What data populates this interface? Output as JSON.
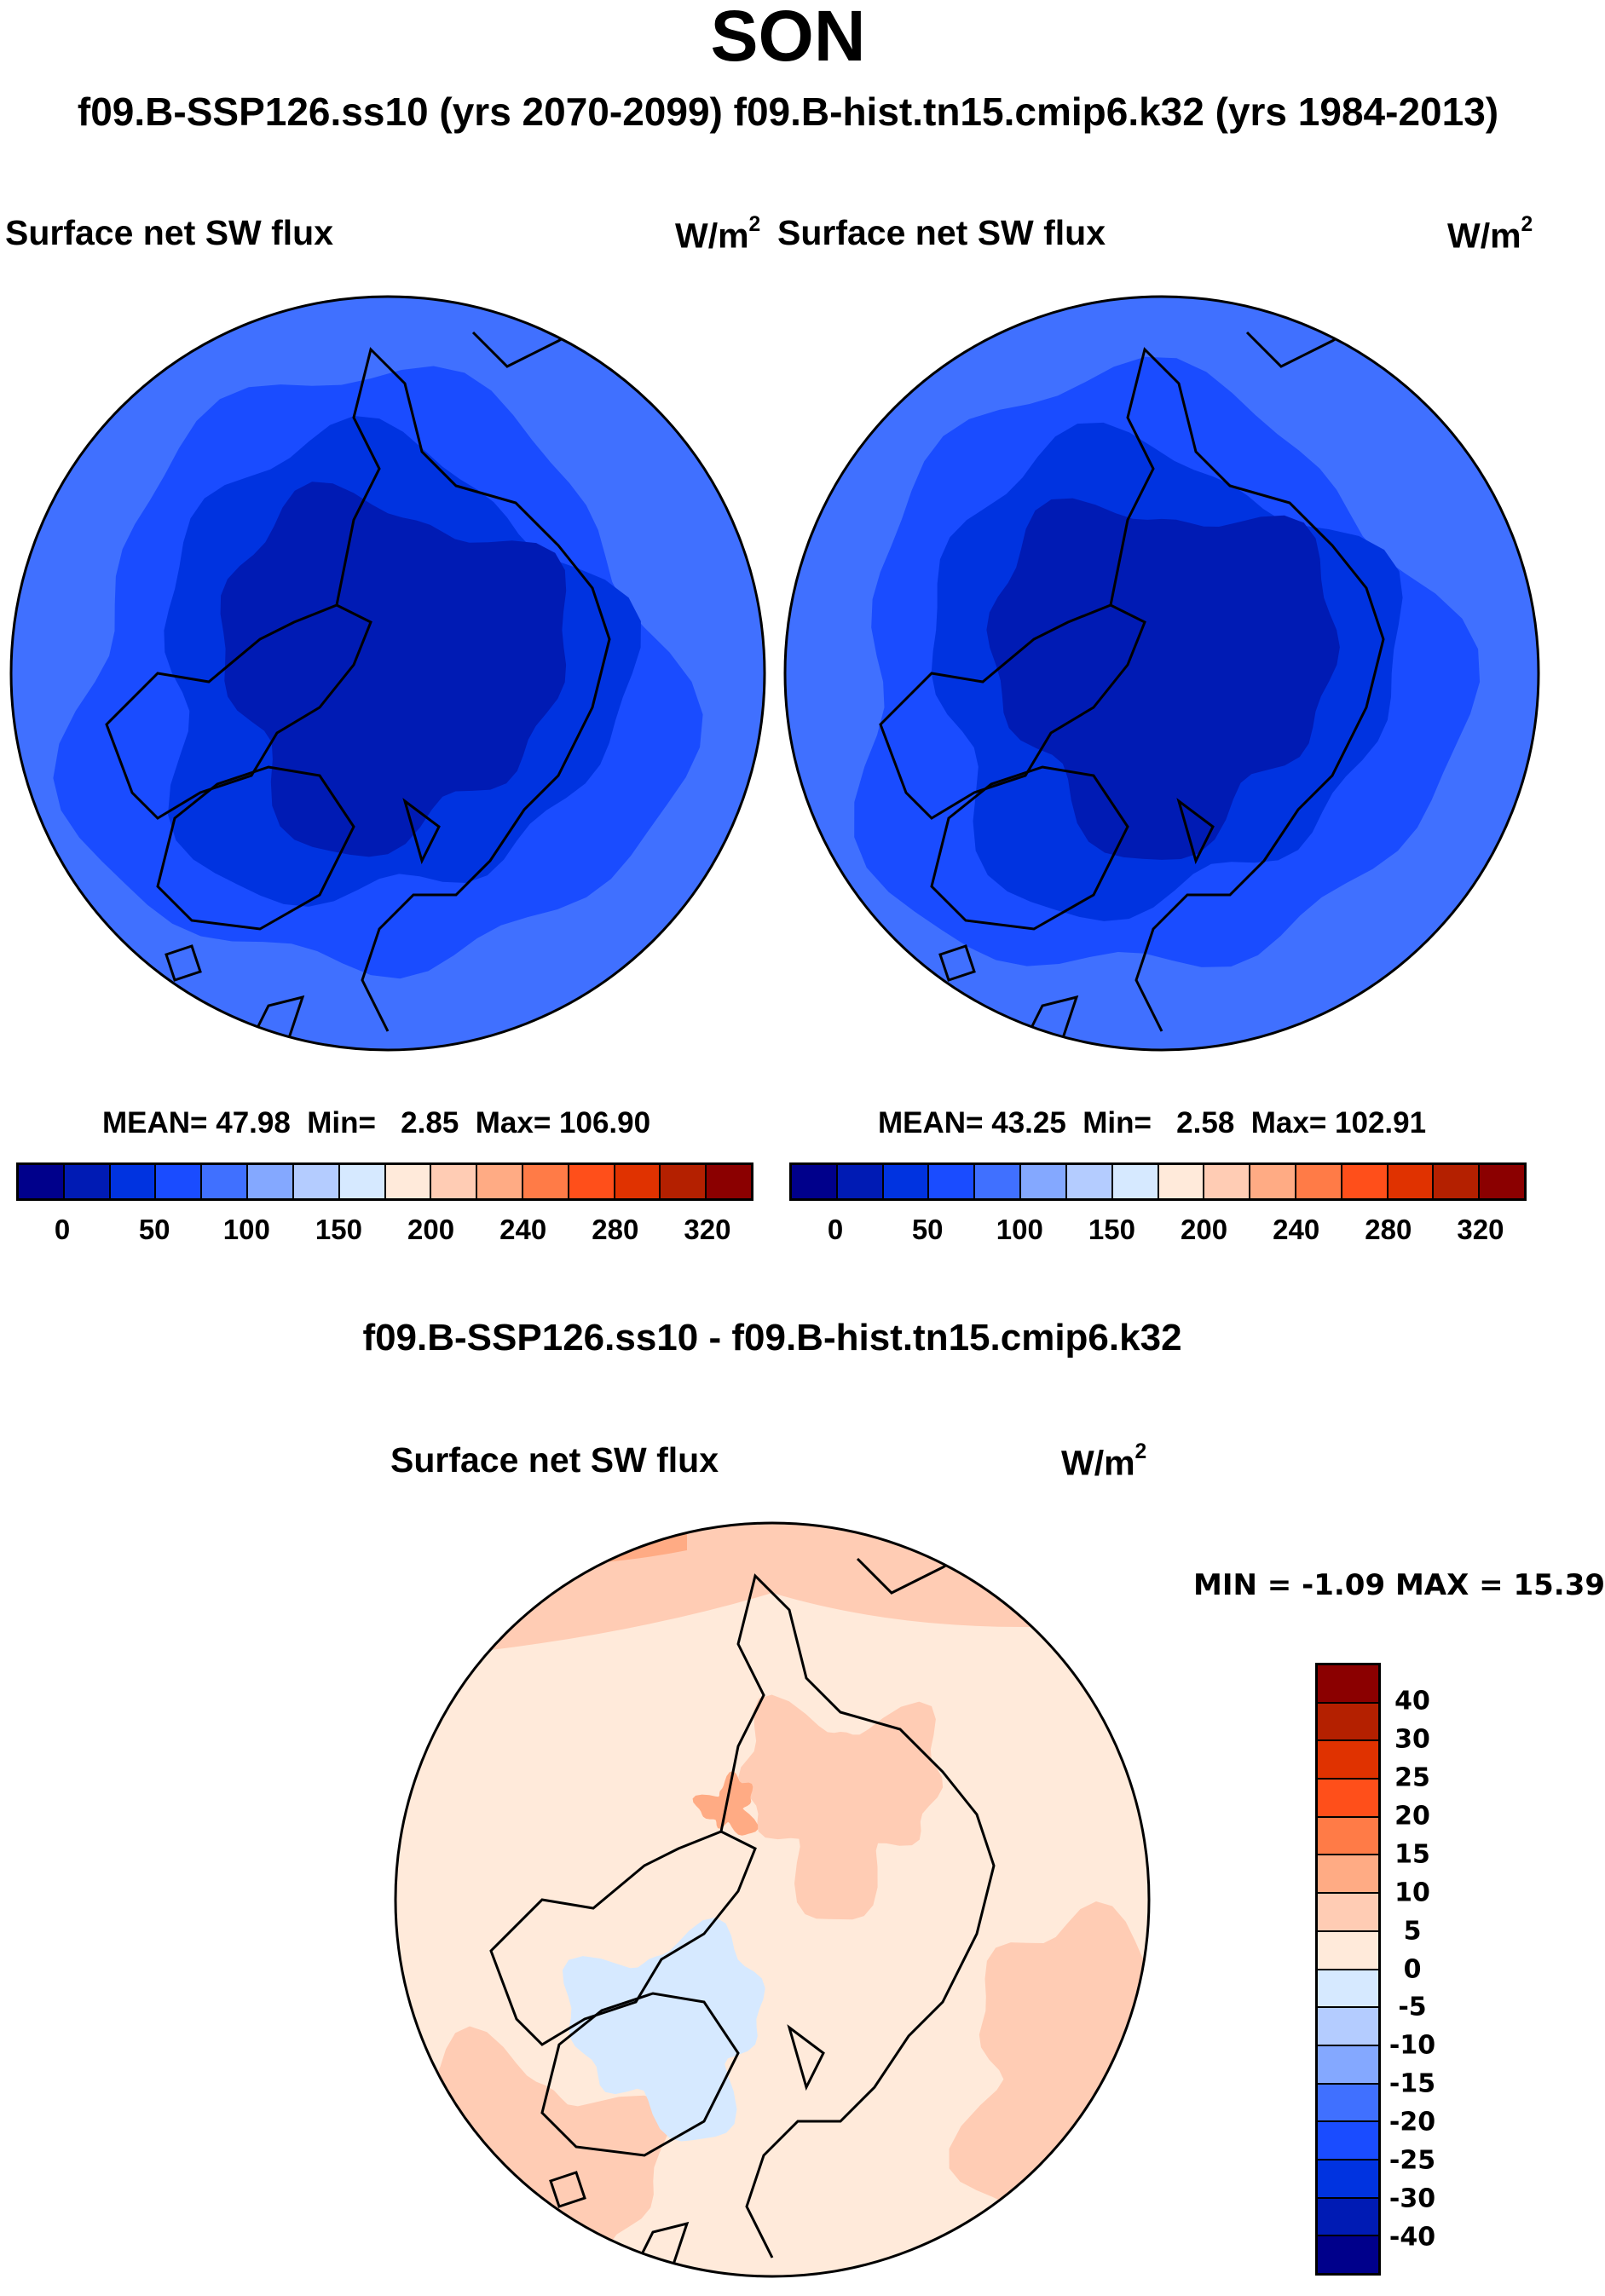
{
  "title": "SON",
  "subtitle": "f09.B-SSP126.ss10 (yrs 2070-2099)  f09.B-hist.tn15.cmip6.k32 (yrs 1984-2013)",
  "chart_data": [
    {
      "type": "heatmap",
      "projection": "north polar stereographic",
      "variable": "Surface net SW flux",
      "units": "W/m",
      "units_exp": "2",
      "case": "f09.B-SSP126.ss10 (yrs 2070-2099)",
      "stats": {
        "mean_label": "MEAN=",
        "mean": "47.98",
        "min_label": "Min=",
        "min": "2.85",
        "max_label": "Max=",
        "max": "106.90"
      },
      "colorbar": {
        "colors": [
          "#00008b",
          "#001bb4",
          "#0033e0",
          "#1a4cff",
          "#4070ff",
          "#84a8ff",
          "#b4ccff",
          "#d6e9ff",
          "#ffeada",
          "#ffccb4",
          "#ffab84",
          "#ff7b47",
          "#ff4f1a",
          "#e03200",
          "#b42000",
          "#8b0000"
        ],
        "tick_labels": [
          "0",
          "50",
          "100",
          "150",
          "200",
          "240",
          "280",
          "320"
        ]
      }
    },
    {
      "type": "heatmap",
      "projection": "north polar stereographic",
      "variable": "Surface net SW flux",
      "units": "W/m",
      "units_exp": "2",
      "case": "f09.B-hist.tn15.cmip6.k32 (yrs 1984-2013)",
      "stats": {
        "mean_label": "MEAN=",
        "mean": "43.25",
        "min_label": "Min=",
        "min": "2.58",
        "max_label": "Max=",
        "max": "102.91"
      },
      "colorbar": {
        "colors": [
          "#00008b",
          "#001bb4",
          "#0033e0",
          "#1a4cff",
          "#4070ff",
          "#84a8ff",
          "#b4ccff",
          "#d6e9ff",
          "#ffeada",
          "#ffccb4",
          "#ffab84",
          "#ff7b47",
          "#ff4f1a",
          "#e03200",
          "#b42000",
          "#8b0000"
        ],
        "tick_labels": [
          "0",
          "50",
          "100",
          "150",
          "200",
          "240",
          "280",
          "320"
        ]
      }
    },
    {
      "type": "heatmap",
      "projection": "north polar stereographic",
      "title": "f09.B-SSP126.ss10 - f09.B-hist.tn15.cmip6.k32",
      "variable": "Surface net SW flux",
      "units": "W/m",
      "units_exp": "2",
      "stats": {
        "min_label": "MIN = ",
        "min": "-1.09",
        "max_label": " MAX = ",
        "max": "15.39"
      },
      "colorbar": {
        "colors_top_to_bottom": [
          "#8b0000",
          "#b42000",
          "#e03200",
          "#ff4f1a",
          "#ff7b47",
          "#ffab84",
          "#ffccb4",
          "#ffeada",
          "#d6e9ff",
          "#b4ccff",
          "#84a8ff",
          "#4070ff",
          "#1a4cff",
          "#0033e0",
          "#001bb4",
          "#00008b"
        ],
        "tick_labels_top_to_bottom": [
          "40",
          "30",
          "25",
          "20",
          "15",
          "10",
          "5",
          "0",
          "-5",
          "-10",
          "-15",
          "-20",
          "-25",
          "-30",
          "-40"
        ]
      }
    }
  ]
}
